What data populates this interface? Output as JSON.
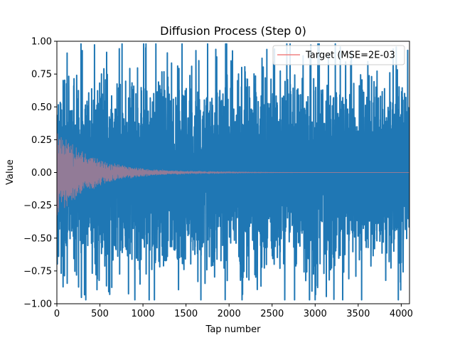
{
  "chart_data": {
    "type": "line",
    "title": "Diffusion Process (Step 0)",
    "xlabel": "Tap number",
    "ylabel": "Value",
    "xlim": [
      0,
      4096
    ],
    "ylim": [
      -1.0,
      1.0
    ],
    "xticks": [
      0,
      500,
      1000,
      1500,
      2000,
      2500,
      3000,
      3500,
      4000
    ],
    "yticks": [
      -1.0,
      -0.75,
      -0.5,
      -0.25,
      0.0,
      0.25,
      0.5,
      0.75,
      1.0
    ],
    "xtick_labels": [
      "0",
      "500",
      "1000",
      "1500",
      "2000",
      "2500",
      "3000",
      "3500",
      "4000"
    ],
    "ytick_labels": [
      "−1.00",
      "−0.75",
      "−0.50",
      "−0.25",
      "0.00",
      "0.25",
      "0.50",
      "0.75",
      "1.00"
    ],
    "grid": false,
    "legend_position": "top-right",
    "series": [
      {
        "name": "",
        "color": "#1f77b4",
        "style": "noise",
        "n_points": 4096,
        "typical_amplitude": 0.5,
        "peak_max": 0.98,
        "peak_min": -0.97
      },
      {
        "name": "Target (MSE=2E-03",
        "color": "#f08080",
        "style": "decaying-oscillation",
        "n_points": 4096,
        "initial_amplitude": 0.35,
        "decay": "exponential"
      }
    ]
  }
}
